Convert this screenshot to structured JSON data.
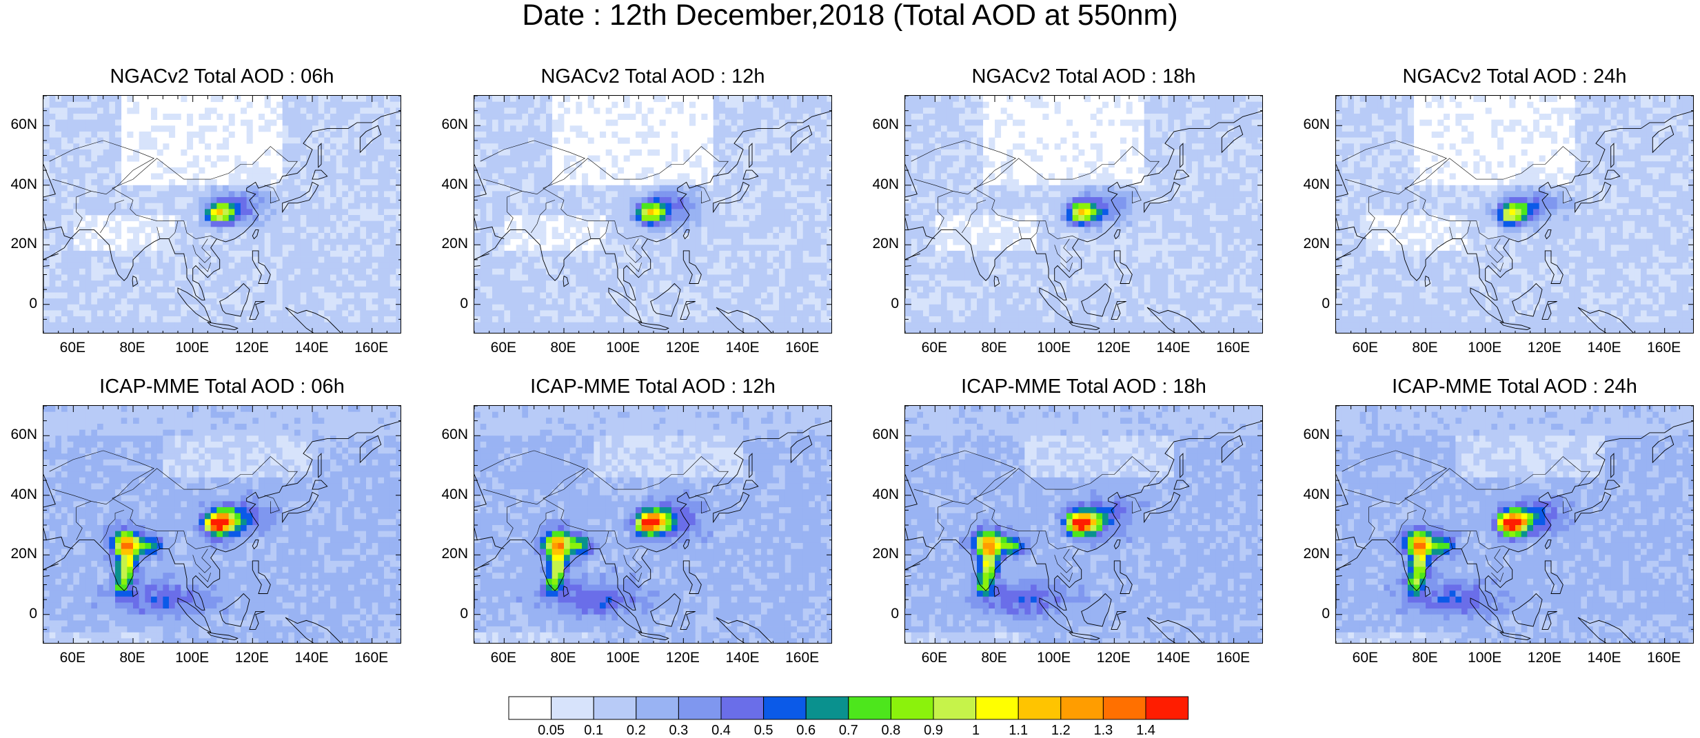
{
  "figure": {
    "title": "Date : 12th December,2018 (Total AOD at 550nm)"
  },
  "axes": {
    "lon_ticks": [
      "60E",
      "80E",
      "100E",
      "120E",
      "140E",
      "160E"
    ],
    "lat_ticks": [
      "60N",
      "40N",
      "20N",
      "0"
    ],
    "lon_range": [
      50,
      170
    ],
    "lat_range": [
      -10,
      70
    ]
  },
  "panels": [
    {
      "title": "NGACv2 Total AOD : 06h",
      "model": "NGACv2",
      "hour": "06h",
      "hotspots": [
        "east-china"
      ]
    },
    {
      "title": "NGACv2 Total AOD : 12h",
      "model": "NGACv2",
      "hour": "12h",
      "hotspots": [
        "east-china"
      ]
    },
    {
      "title": "NGACv2 Total AOD : 18h",
      "model": "NGACv2",
      "hour": "18h",
      "hotspots": [
        "east-china"
      ]
    },
    {
      "title": "NGACv2 Total AOD : 24h",
      "model": "NGACv2",
      "hour": "24h",
      "hotspots": [
        "east-china"
      ]
    },
    {
      "title": "ICAP-MME Total AOD : 06h",
      "model": "ICAP-MME",
      "hour": "06h",
      "hotspots": [
        "india",
        "east-china"
      ]
    },
    {
      "title": "ICAP-MME Total AOD : 12h",
      "model": "ICAP-MME",
      "hour": "12h",
      "hotspots": [
        "india",
        "east-china"
      ]
    },
    {
      "title": "ICAP-MME Total AOD : 18h",
      "model": "ICAP-MME",
      "hour": "18h",
      "hotspots": [
        "india",
        "east-china"
      ]
    },
    {
      "title": "ICAP-MME Total AOD : 24h",
      "model": "ICAP-MME",
      "hour": "24h",
      "hotspots": [
        "india",
        "east-china"
      ]
    }
  ],
  "colorbar": {
    "labels": [
      "0.05",
      "0.1",
      "0.2",
      "0.3",
      "0.4",
      "0.5",
      "0.6",
      "0.7",
      "0.8",
      "0.9",
      "1",
      "1.1",
      "1.2",
      "1.3",
      "1.4"
    ],
    "colors": [
      "#ffffff",
      "#d7e3fb",
      "#b8cbf7",
      "#99b3f3",
      "#7f97ef",
      "#6a6ee9",
      "#0b5ae8",
      "#0a918e",
      "#4de61c",
      "#8bf20c",
      "#c6f34a",
      "#ffff00",
      "#ffc400",
      "#ff9d00",
      "#ff7000",
      "#ff1d00"
    ]
  }
}
